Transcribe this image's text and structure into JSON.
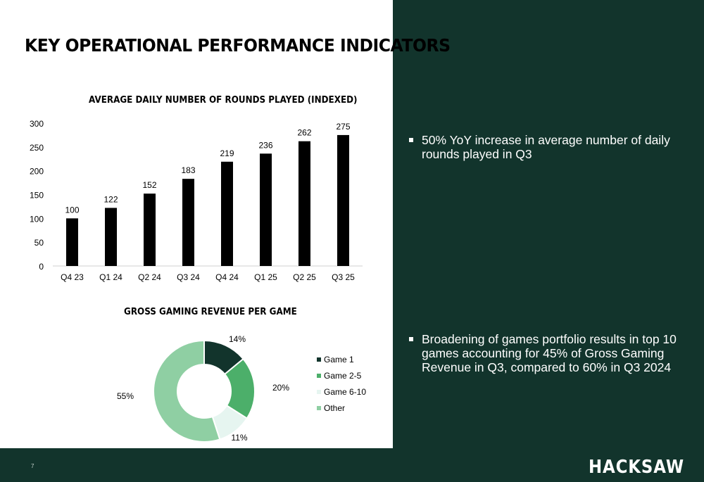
{
  "page": {
    "title": "KEY OPERATIONAL PERFORMANCE INDICATORS",
    "page_number": "7",
    "logo_text": "HACKSAW"
  },
  "bullets": [
    "50% YoY increase in average number of daily rounds played in Q3",
    "Broadening of games portfolio results in top 10 games accounting for 45% of Gross Gaming Revenue in Q3, compared to 60% in Q3 2024"
  ],
  "colors": {
    "panel_bg": "#12342c",
    "bar": "#000000",
    "game_1": "#12342c",
    "game_2_5": "#4caf6a",
    "game_6_10": "#e6f5f0",
    "other": "#8fcfa3"
  },
  "chart_data": [
    {
      "type": "bar",
      "title": "AVERAGE DAILY NUMBER OF ROUNDS PLAYED (INDEXED)",
      "categories": [
        "Q4 23",
        "Q1 24",
        "Q2 24",
        "Q3 24",
        "Q4 24",
        "Q1 25",
        "Q2 25",
        "Q3 25"
      ],
      "values": [
        100,
        122,
        152,
        183,
        219,
        236,
        262,
        275
      ],
      "ylim": [
        0,
        300
      ],
      "yticks": [
        0,
        50,
        100,
        150,
        200,
        250,
        300
      ],
      "grid": false,
      "data_labels": true
    },
    {
      "type": "pie",
      "donut": true,
      "title": "GROSS GAMING REVENUE PER GAME",
      "categories": [
        "Game 1",
        "Game 2-5",
        "Game 6-10",
        "Other"
      ],
      "values": [
        14,
        20,
        11,
        55
      ],
      "value_labels": [
        "14%",
        "20%",
        "11%",
        "55%"
      ],
      "legend": "right"
    }
  ]
}
